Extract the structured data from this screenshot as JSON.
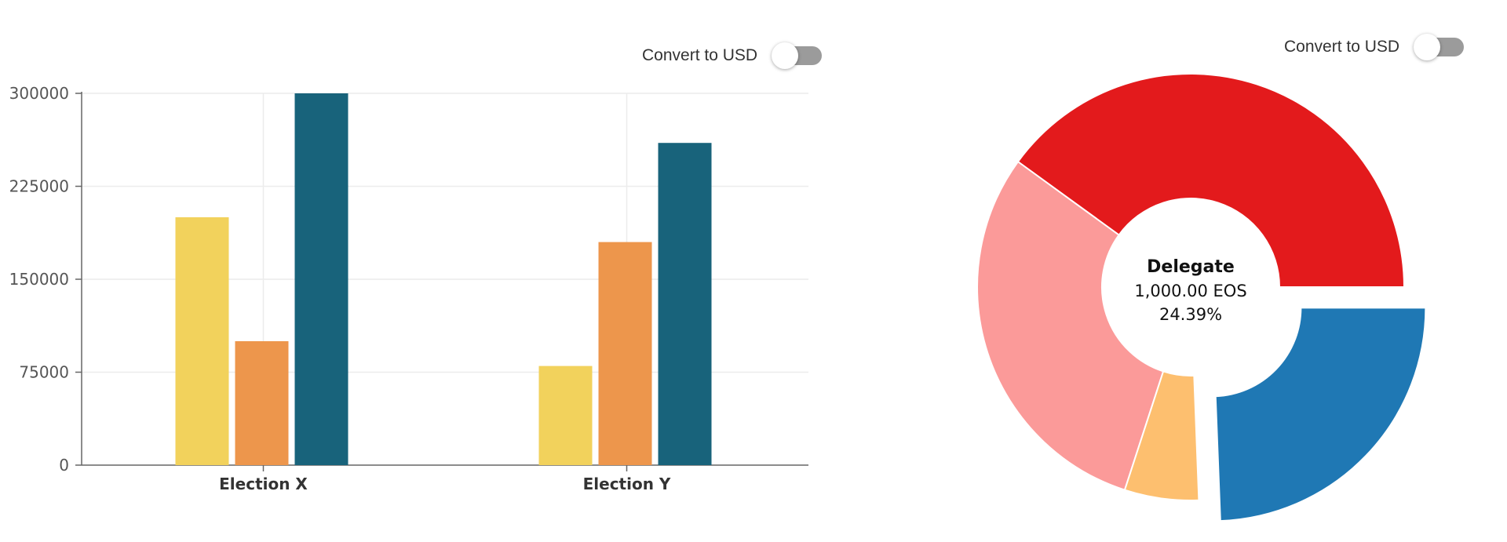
{
  "toggles": [
    {
      "label": "Convert to USD",
      "checked": false
    },
    {
      "label": "Convert to USD",
      "checked": false
    }
  ],
  "chart_data": [
    {
      "type": "bar",
      "categories": [
        "Election X",
        "Election Y"
      ],
      "series": [
        {
          "color": "#f2d25c",
          "values": [
            200000,
            80000
          ]
        },
        {
          "color": "#ed964c",
          "values": [
            100000,
            180000
          ]
        },
        {
          "color": "#18637b",
          "values": [
            300000,
            260000
          ]
        }
      ],
      "yticks": [
        "0",
        "75000",
        "150000",
        "225000",
        "300000"
      ],
      "ylim": [
        0,
        300000
      ],
      "grid": true
    },
    {
      "type": "pie",
      "donut": true,
      "center": {
        "title": "Delegate",
        "amount": "1,000.00 EOS",
        "percent": "24.39%"
      },
      "slices": [
        {
          "value": 40.0,
          "color": "#e31a1c",
          "highlighted": false
        },
        {
          "value": 30.0,
          "color": "#fb9a99",
          "highlighted": false
        },
        {
          "value": 5.61,
          "color": "#fdbf6f",
          "highlighted": false
        },
        {
          "value": 24.39,
          "color": "#1f78b4",
          "highlighted": true
        }
      ]
    }
  ]
}
